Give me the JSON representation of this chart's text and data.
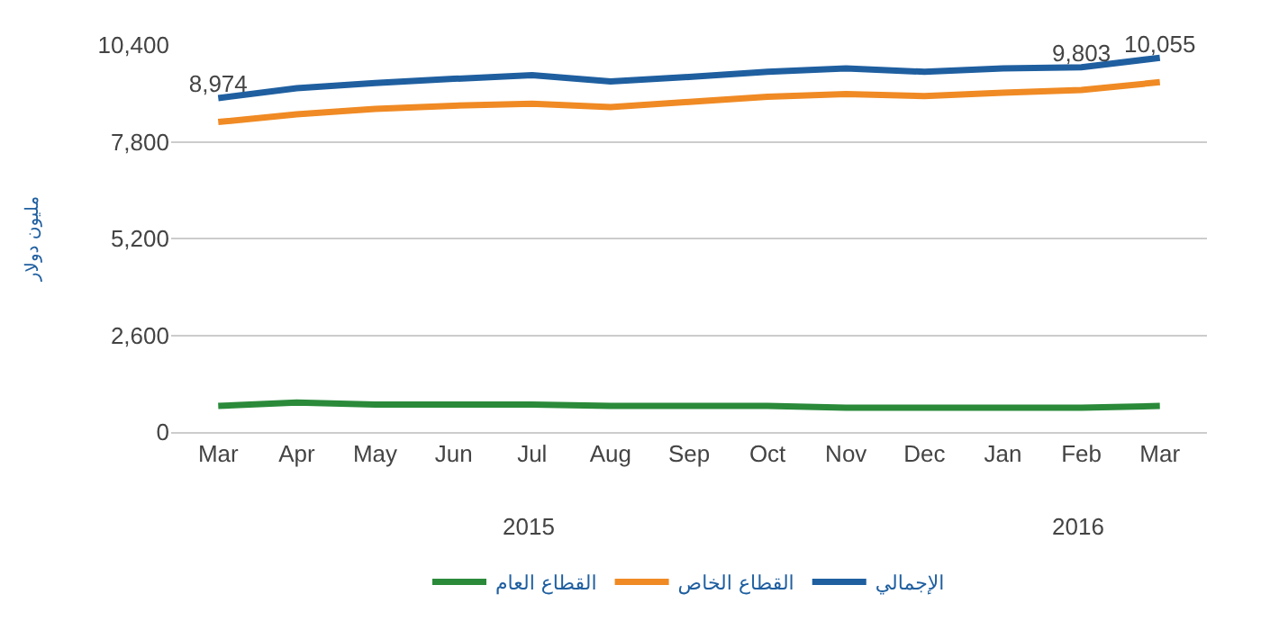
{
  "chart_data": {
    "type": "line",
    "ylabel": "مليون دولار",
    "categories": [
      "Mar",
      "Apr",
      "May",
      "Jun",
      "Jul",
      "Aug",
      "Sep",
      "Oct",
      "Nov",
      "Dec",
      "Jan",
      "Feb",
      "Mar"
    ],
    "ylim": [
      0,
      10400
    ],
    "yticks": [
      {
        "value": 0,
        "label": "0"
      },
      {
        "value": 2600,
        "label": "2,600"
      },
      {
        "value": 5200,
        "label": "5,200"
      },
      {
        "value": 7800,
        "label": "7,800"
      },
      {
        "value": 10400,
        "label": "10,400"
      }
    ],
    "grid": "y",
    "legend": "bottom",
    "marker": "none",
    "line_style": "solid",
    "annotations": [
      "2015",
      "2016"
    ],
    "series": [
      {
        "name": "الإجمالي",
        "color": "#1f5fa0",
        "values": [
          8974,
          9240,
          9380,
          9490,
          9590,
          9420,
          9540,
          9680,
          9770,
          9680,
          9770,
          9803,
          10055
        ],
        "value_labels": [
          "8,974",
          null,
          null,
          null,
          null,
          null,
          null,
          null,
          null,
          null,
          null,
          "9,803",
          "10,055"
        ]
      },
      {
        "name": "القطاع الخاص",
        "color": "#f08a24",
        "values": [
          8330,
          8540,
          8680,
          8770,
          8820,
          8730,
          8870,
          9010,
          9080,
          9030,
          9120,
          9190,
          9400
        ]
      },
      {
        "name": "القطاع العام",
        "color": "#2a8a3a",
        "values": [
          700,
          790,
          740,
          740,
          740,
          700,
          700,
          700,
          650,
          650,
          650,
          650,
          700
        ]
      }
    ]
  }
}
